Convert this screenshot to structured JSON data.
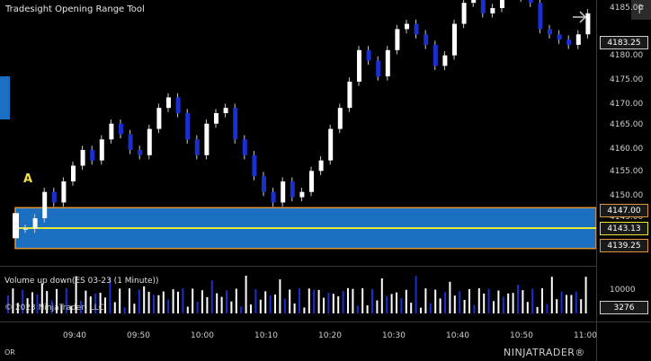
{
  "app": {
    "title": "Tradesight Opening Range Tool",
    "f_button": "F",
    "annotation": "A"
  },
  "price_axis": {
    "ticks": [
      "4185.00",
      "4180.00",
      "4175.00",
      "4170.00",
      "4165.00",
      "4160.00",
      "4155.00",
      "4150.00",
      "4145.00"
    ],
    "current_price": "4183.25",
    "or_high": "4147.00",
    "or_mid": "4143.13",
    "or_low": "4139.25"
  },
  "volume": {
    "label": "Volume up down(ES 03-23 (1 Minute))",
    "axis_tick": "10000",
    "current": "3276"
  },
  "copyright": "© 2023 NinjaTrader, LLC",
  "time_axis": [
    "09:40",
    "09:50",
    "10:00",
    "10:10",
    "10:20",
    "10:30",
    "10:40",
    "10:50",
    "11:00"
  ],
  "footer": {
    "or_label": "OR",
    "brand": "NINJATRADER®"
  },
  "colors": {
    "up_candle": "#ffffff",
    "down_candle": "#1a2fd0",
    "or_band": "#1a6fc0",
    "or_border": "#e0963a",
    "or_mid_line": "#e8e830"
  }
}
